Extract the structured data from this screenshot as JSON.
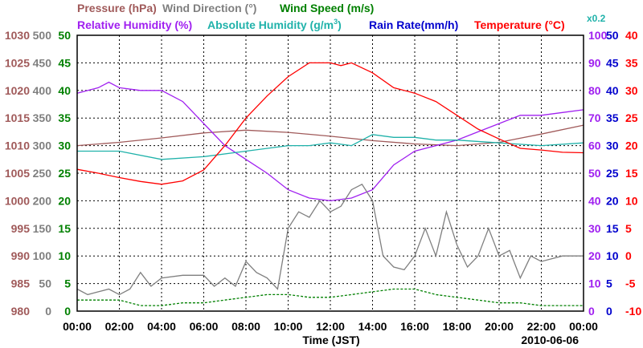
{
  "chart_data": {
    "type": "line",
    "date_label": "2010-06-06",
    "xlabel": "Time (JST)",
    "x_ticks": [
      "00:00",
      "02:00",
      "04:00",
      "06:00",
      "08:00",
      "10:00",
      "12:00",
      "14:00",
      "16:00",
      "18:00",
      "20:00",
      "22:00",
      "00:00"
    ],
    "x_range_hours": [
      0,
      24
    ],
    "grid": true,
    "legend": [
      {
        "label": "Pressure (hPa)",
        "color": "#a05a5a"
      },
      {
        "label": "Wind Direction (°)",
        "color": "#7f7f7f"
      },
      {
        "label": "Wind Speed (m/s)",
        "color": "#008000"
      },
      {
        "label": "Relative Humidity (%)",
        "color": "#a020f0"
      },
      {
        "label": "Absolute Humidity (g/m",
        "sup": "3",
        "label_end": ")",
        "color": "#20b2aa"
      },
      {
        "label": "Rain Rate(mm/h)",
        "color": "#0000cd"
      },
      {
        "label": "Temperature (°C)",
        "color": "#ff0000"
      }
    ],
    "scale_note": "x0.2",
    "axes": {
      "pressure": {
        "color": "#a05a5a",
        "range": [
          980,
          1030
        ],
        "ticks": [
          "1030",
          "1025",
          "1020",
          "1015",
          "1010",
          "1005",
          "1000",
          "995",
          "990",
          "985",
          "980"
        ]
      },
      "wind_direction": {
        "color": "#7f7f7f",
        "range": [
          0,
          500
        ],
        "ticks": [
          "500",
          "450",
          "400",
          "350",
          "300",
          "250",
          "200",
          "150",
          "100",
          "50",
          "0"
        ]
      },
      "wind_speed": {
        "color": "#008000",
        "range": [
          0,
          50
        ],
        "ticks": [
          "50",
          "45",
          "40",
          "35",
          "30",
          "25",
          "20",
          "15",
          "10",
          "5",
          "0"
        ]
      },
      "relative_humidity": {
        "color": "#a020f0",
        "range": [
          0,
          100
        ],
        "ticks": [
          "100",
          "90",
          "80",
          "70",
          "60",
          "50",
          "40",
          "30",
          "20",
          "10",
          "0"
        ]
      },
      "rain_rate": {
        "color": "#0000cd",
        "range": [
          0,
          50
        ],
        "ticks": [
          "50",
          "45",
          "40",
          "35",
          "30",
          "25",
          "20",
          "15",
          "10",
          "5",
          "0"
        ]
      },
      "temperature": {
        "color": "#ff0000",
        "range": [
          -10,
          40
        ],
        "ticks": [
          "40",
          "35",
          "30",
          "25",
          "20",
          "15",
          "10",
          "5",
          "0",
          "-5",
          "-10"
        ]
      }
    },
    "series": [
      {
        "name": "Pressure (hPa)",
        "axis": "pressure",
        "color": "#a05a5a",
        "x": [
          0,
          2,
          4,
          6,
          8,
          10,
          12,
          14,
          16,
          18,
          20,
          22,
          24
        ],
        "y": [
          1010.0,
          1010.6,
          1011.4,
          1012.3,
          1012.8,
          1012.4,
          1011.7,
          1010.9,
          1010.3,
          1010.0,
          1010.6,
          1012.1,
          1013.7
        ]
      },
      {
        "name": "Relative Humidity (%)",
        "axis": "relative_humidity",
        "color": "#a020f0",
        "x": [
          0,
          1,
          1.5,
          2,
          3,
          4,
          5,
          6,
          7,
          8,
          9,
          10,
          11,
          12,
          13,
          14,
          15,
          16,
          17,
          18,
          19,
          20,
          21,
          22,
          23,
          24
        ],
        "y": [
          79,
          81,
          83,
          81,
          80,
          80,
          76,
          68,
          60,
          55,
          50,
          44,
          41,
          40,
          41,
          44,
          53,
          58,
          60,
          62,
          65,
          68,
          71,
          71,
          72,
          73
        ]
      },
      {
        "name": "Absolute Humidity",
        "axis": "relative_humidity",
        "color": "#20b2aa",
        "x": [
          0,
          2,
          4,
          6,
          8,
          10,
          11,
          12,
          13,
          14,
          15,
          16,
          17,
          18,
          20,
          22,
          24
        ],
        "y": [
          58,
          58,
          55,
          56,
          58,
          60,
          60,
          61,
          60,
          64,
          63,
          63,
          62,
          62,
          61,
          60,
          61
        ]
      },
      {
        "name": "Temperature (°C)",
        "axis": "temperature",
        "color": "#ff0000",
        "x": [
          0,
          1,
          2,
          3,
          4,
          5,
          6,
          7,
          8,
          9,
          10,
          11,
          12,
          12.5,
          13,
          14,
          15,
          16,
          17,
          18,
          19,
          20,
          21,
          22,
          23,
          24
        ],
        "y": [
          15.7,
          15.0,
          14.2,
          13.5,
          13.0,
          13.6,
          15.6,
          20.0,
          25.0,
          29.0,
          32.5,
          35.0,
          35.0,
          34.5,
          35.0,
          33.2,
          30.5,
          29.5,
          28.0,
          25.5,
          23.0,
          21.2,
          19.5,
          19.2,
          18.8,
          18.7
        ]
      },
      {
        "name": "Wind Direction (°)",
        "axis": "wind_direction",
        "color": "#7f7f7f",
        "x": [
          0,
          0.5,
          1,
          1.5,
          2,
          2.5,
          3,
          3.5,
          4,
          5,
          6,
          6.5,
          7,
          7.5,
          8,
          8.5,
          9,
          9.5,
          10,
          10.5,
          11,
          11.5,
          12,
          12.5,
          13,
          13.5,
          14,
          14.5,
          15,
          15.5,
          16,
          16.5,
          17,
          17.5,
          18,
          18.5,
          19,
          19.5,
          20,
          20.5,
          21,
          21.5,
          22,
          23,
          24
        ],
        "y": [
          40,
          30,
          35,
          40,
          30,
          40,
          70,
          45,
          60,
          65,
          65,
          45,
          60,
          45,
          90,
          70,
          60,
          40,
          150,
          180,
          170,
          200,
          180,
          190,
          220,
          230,
          200,
          100,
          80,
          75,
          100,
          150,
          100,
          180,
          120,
          80,
          100,
          150,
          100,
          110,
          60,
          100,
          90,
          100,
          100
        ]
      },
      {
        "name": "Wind Speed (m/s)",
        "axis": "wind_speed",
        "color": "#008000",
        "x": [
          0,
          1,
          2,
          3,
          4,
          5,
          6,
          7,
          8,
          9,
          10,
          11,
          12,
          13,
          14,
          15,
          16,
          17,
          18,
          19,
          20,
          21,
          22,
          23,
          24
        ],
        "y": [
          2,
          2,
          2,
          1,
          1,
          1.5,
          1.5,
          2,
          2.5,
          3,
          3,
          2.5,
          2.5,
          3,
          3.5,
          4,
          4,
          3,
          2.5,
          2,
          1.5,
          1.5,
          1,
          1,
          1
        ]
      }
    ]
  }
}
